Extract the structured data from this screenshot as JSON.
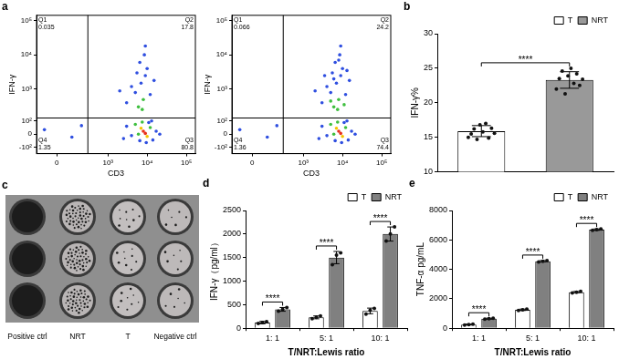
{
  "chart_data": [
    {
      "type": "scatter",
      "panel": "a",
      "x_label": "CD3",
      "y_label": "IFN-γ",
      "xlim": [
        -150,
        170000
      ],
      "ylim": [
        -170,
        140000
      ],
      "xticks": [
        0,
        {
          "value": 1000,
          "label": "10³"
        },
        {
          "value": 10000,
          "label": "10⁴"
        },
        {
          "value": 100000,
          "label": "10⁵"
        }
      ],
      "yticks": [
        {
          "value": -100,
          "label": "-10²"
        },
        0,
        {
          "value": 100,
          "label": "10²"
        },
        {
          "value": 1000,
          "label": "10³"
        },
        {
          "value": 10000,
          "label": "10⁴"
        },
        {
          "value": 100000,
          "label": "10⁵"
        }
      ],
      "gates": {
        "x": 300,
        "y": 130
      },
      "quadrants": [
        {
          "label": "Q1",
          "value": 0.035
        },
        {
          "label": "Q2",
          "value": 17.8
        },
        {
          "label": "Q3",
          "value": 80.8
        },
        {
          "label": "Q4",
          "value": 1.35
        }
      ],
      "x": [
        8000,
        9000,
        7000,
        10000,
        6000,
        12000,
        5000,
        7500,
        14000,
        4000,
        11000,
        17000,
        3000,
        9500,
        21000,
        2500,
        6500,
        13000,
        6000,
        8000,
        7500,
        5000,
        7000,
        9000,
        4000,
        10000,
        6500,
        8500,
        3000,
        12000,
        5500,
        2000,
        15000,
        9000,
        100,
        -80,
        200
      ],
      "values": [
        20,
        5,
        40,
        -15,
        0,
        45,
        70,
        90,
        -40,
        -10,
        85,
        20,
        55,
        -60,
        0,
        -30,
        -45,
        100,
        300,
        500,
        250,
        800,
        1500,
        2500,
        1200,
        4000,
        6000,
        10000,
        400,
        700,
        3000,
        900,
        1800,
        18000,
        -20,
        30,
        60
      ],
      "colors": [
        "#e8301c",
        "#e8301c",
        "#f5c400",
        "#f5c400",
        "#3fbf3f",
        "#3fbf3f",
        "#3fbf3f",
        "#3fbf3f",
        "#2f4fe0",
        "#2f4fe0",
        "#2f4fe0",
        "#2f4fe0",
        "#2f4fe0",
        "#2f4fe0",
        "#2f4fe0",
        "#2f4fe0",
        "#2f4fe0",
        "#2f4fe0",
        "#3fbf3f",
        "#3fbf3f",
        "#3fbf3f",
        "#2f4fe0",
        "#2f4fe0",
        "#2f4fe0",
        "#2f4fe0",
        "#2f4fe0",
        "#2f4fe0",
        "#2f4fe0",
        "#2f4fe0",
        "#2f4fe0",
        "#2f4fe0",
        "#2f4fe0",
        "#2f4fe0",
        "#2f4fe0",
        "#2f4fe0",
        "#2f4fe0",
        "#2f4fe0"
      ],
      "grid": false
    },
    {
      "type": "scatter",
      "x_label": "CD3",
      "y_label": "IFN-γ",
      "xlim": [
        -150,
        170000
      ],
      "ylim": [
        -170,
        140000
      ],
      "xticks": [
        0,
        {
          "value": 1000,
          "label": "10³"
        },
        {
          "value": 10000,
          "label": "10⁴"
        },
        {
          "value": 100000,
          "label": "10⁵"
        }
      ],
      "yticks": [
        {
          "value": -100,
          "label": "-10²"
        },
        0,
        {
          "value": 100,
          "label": "10²"
        },
        {
          "value": 1000,
          "label": "10³"
        },
        {
          "value": 10000,
          "label": "10⁴"
        },
        {
          "value": 100000,
          "label": "10⁵"
        }
      ],
      "gates": {
        "x": 300,
        "y": 130
      },
      "quadrants": [
        {
          "label": "Q1",
          "value": 0.066
        },
        {
          "label": "Q2",
          "value": 24.2
        },
        {
          "label": "Q3",
          "value": 74.4
        },
        {
          "label": "Q4",
          "value": 1.36
        }
      ],
      "x": [
        8000,
        9000,
        7000,
        10000,
        6000,
        12000,
        5000,
        7500,
        14000,
        4000,
        11000,
        17000,
        3000,
        9500,
        21000,
        2500,
        6500,
        13000,
        6000,
        8000,
        7500,
        5000,
        11000,
        5000,
        7000,
        9000,
        4000,
        10000,
        6500,
        8500,
        3000,
        12000,
        5500,
        2000,
        15000,
        9000,
        6000,
        8000,
        3500,
        13000,
        100,
        -80,
        200
      ],
      "values": [
        20,
        5,
        40,
        -15,
        0,
        45,
        70,
        90,
        -40,
        -10,
        85,
        20,
        55,
        -60,
        0,
        -30,
        -45,
        100,
        300,
        500,
        250,
        450,
        350,
        800,
        1500,
        2500,
        1200,
        4000,
        6000,
        10000,
        400,
        700,
        3000,
        900,
        1800,
        18000,
        2000,
        7000,
        2500,
        3500,
        -20,
        30,
        60
      ],
      "colors": [
        "#e8301c",
        "#e8301c",
        "#f5c400",
        "#f5c400",
        "#3fbf3f",
        "#3fbf3f",
        "#3fbf3f",
        "#3fbf3f",
        "#2f4fe0",
        "#2f4fe0",
        "#2f4fe0",
        "#2f4fe0",
        "#2f4fe0",
        "#2f4fe0",
        "#2f4fe0",
        "#2f4fe0",
        "#2f4fe0",
        "#2f4fe0",
        "#3fbf3f",
        "#3fbf3f",
        "#3fbf3f",
        "#3fbf3f",
        "#3fbf3f",
        "#2f4fe0",
        "#2f4fe0",
        "#2f4fe0",
        "#2f4fe0",
        "#2f4fe0",
        "#2f4fe0",
        "#2f4fe0",
        "#2f4fe0",
        "#2f4fe0",
        "#2f4fe0",
        "#2f4fe0",
        "#2f4fe0",
        "#2f4fe0",
        "#2f4fe0",
        "#2f4fe0",
        "#2f4fe0",
        "#2f4fe0",
        "#2f4fe0",
        "#2f4fe0",
        "#2f4fe0"
      ],
      "grid": false
    },
    {
      "type": "bar",
      "panel": "b",
      "y_label": "IFN-γ%",
      "categories": [
        "T",
        "NRT"
      ],
      "values": [
        15.9,
        23.3
      ],
      "colors": [
        "#ffffff",
        "#999999"
      ],
      "errors": [
        0.8,
        1.2
      ],
      "points": [
        [
          15.0,
          15.5,
          16.2,
          14.7,
          16.8,
          15.8,
          17.0,
          14.9,
          16.3,
          15.6
        ],
        [
          22.0,
          23.5,
          24.6,
          21.3,
          23.9,
          25.0,
          22.8,
          24.2,
          22.5,
          23.4
        ]
      ],
      "annotations": [
        "****"
      ],
      "ylim": [
        10,
        30
      ],
      "yticks": [
        10,
        15,
        20,
        25,
        30
      ],
      "legend": "top-right",
      "grid": false,
      "tick_labels": "y"
    },
    {
      "type": "bar",
      "panel": "d",
      "x_label": "T/NRT:Lewis ratio",
      "y_label": "IFN-γ（pg/ml）",
      "categories": [
        "1: 1",
        "5: 1",
        "10: 1"
      ],
      "series": [
        {
          "name": "T",
          "color": "#ffffff",
          "values": [
            120,
            230,
            367
          ],
          "errors": [
            25,
            30,
            60
          ],
          "points": [
            [
              100,
              120,
              140
            ],
            [
              200,
              230,
              260
            ],
            [
              300,
              380,
              420
            ]
          ]
        },
        {
          "name": "NRT",
          "color": "#808080",
          "values": [
            400,
            1500,
            2000
          ],
          "errors": [
            40,
            130,
            150
          ],
          "points": [
            [
              360,
              400,
              440
            ],
            [
              1350,
              1550,
              1600
            ],
            [
              1850,
              2000,
              2150
            ]
          ]
        }
      ],
      "annotations": [
        "****",
        "****",
        "****"
      ],
      "ylim": [
        0,
        2500
      ],
      "yticks": [
        0,
        500,
        1000,
        1500,
        2000,
        2500
      ],
      "legend": "top-right",
      "grid": false
    },
    {
      "type": "bar",
      "panel": "e",
      "x_label": "T/NRT:Lewis ratio",
      "y_label": "TNF-α pg/mL",
      "categories": [
        "1: 1",
        "5: 1",
        "10: 1"
      ],
      "series": [
        {
          "name": "T",
          "color": "#ffffff",
          "values": [
            250,
            1250,
            2450
          ],
          "errors": [
            30,
            50,
            50
          ],
          "points": [
            [
              220,
              250,
              280
            ],
            [
              1200,
              1250,
              1300
            ],
            [
              2400,
              2450,
              2500
            ]
          ]
        },
        {
          "name": "NRT",
          "color": "#808080",
          "values": [
            650,
            4550,
            6700
          ],
          "errors": [
            30,
            50,
            50
          ],
          "points": [
            [
              620,
              650,
              680
            ],
            [
              4500,
              4550,
              4600
            ],
            [
              6650,
              6700,
              6750
            ]
          ]
        }
      ],
      "annotations": [
        "****",
        "****",
        "****"
      ],
      "ylim": [
        0,
        8000
      ],
      "yticks": [
        0,
        2000,
        4000,
        6000,
        8000
      ],
      "legend": "top-right",
      "grid": false
    }
  ],
  "wells": {
    "panel": "c",
    "labels": [
      "Positive ctrl",
      "NRT",
      "T",
      "Negative ctrl"
    ]
  }
}
